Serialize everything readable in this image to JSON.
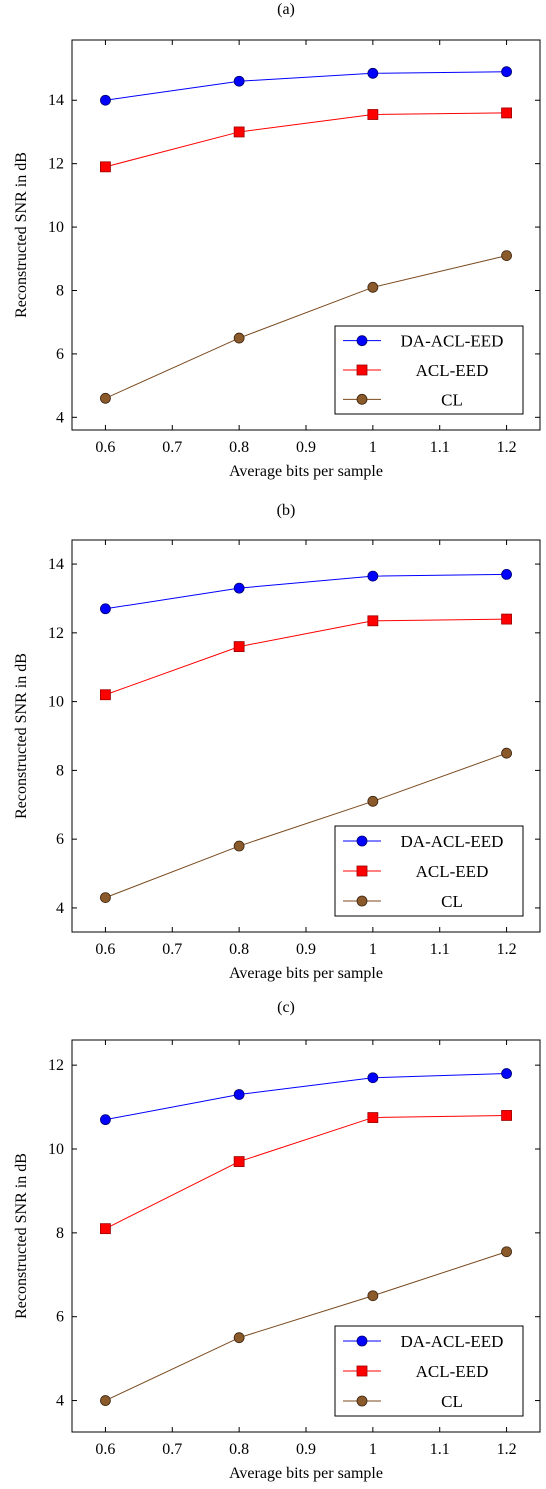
{
  "colors": {
    "DA-ACL-EED": "#0000ff",
    "ACL-EED": "#ff0000",
    "ACL-EED-marker-edge": "#990000",
    "CL": "#7a4a1f",
    "CL-marker": "#8b5a2b",
    "axis": "#000000"
  },
  "chart_data": [
    {
      "type": "line",
      "panel_label": "(a)",
      "xlabel": "Average bits per sample",
      "ylabel": "Reconstructed SNR in dB",
      "x": [
        0.6,
        0.8,
        1.0,
        1.2
      ],
      "xlim": [
        0.55,
        1.25
      ],
      "ylim": [
        3.6,
        15.9
      ],
      "xticks": [
        0.6,
        0.7,
        0.8,
        0.9,
        1.0,
        1.1,
        1.2
      ],
      "xtick_labels": [
        "0.6",
        "0.7",
        "0.8",
        "0.9",
        "1",
        "1.1",
        "1.2"
      ],
      "yticks": [
        4,
        6,
        8,
        10,
        12,
        14
      ],
      "legend_position": "bottom-right",
      "series": [
        {
          "name": "DA-ACL-EED",
          "marker": "circle",
          "values": [
            14.0,
            14.6,
            14.85,
            14.9
          ]
        },
        {
          "name": "ACL-EED",
          "marker": "square",
          "values": [
            11.9,
            13.0,
            13.55,
            13.6
          ]
        },
        {
          "name": "CL",
          "marker": "circle",
          "values": [
            4.6,
            6.5,
            8.1,
            9.1
          ]
        }
      ]
    },
    {
      "type": "line",
      "panel_label": "(b)",
      "xlabel": "Average bits per sample",
      "ylabel": "Reconstructed SNR in dB",
      "x": [
        0.6,
        0.8,
        1.0,
        1.2
      ],
      "xlim": [
        0.55,
        1.25
      ],
      "ylim": [
        3.3,
        14.7
      ],
      "xticks": [
        0.6,
        0.7,
        0.8,
        0.9,
        1.0,
        1.1,
        1.2
      ],
      "xtick_labels": [
        "0.6",
        "0.7",
        "0.8",
        "0.9",
        "1",
        "1.1",
        "1.2"
      ],
      "yticks": [
        4,
        6,
        8,
        10,
        12,
        14
      ],
      "legend_position": "bottom-right",
      "series": [
        {
          "name": "DA-ACL-EED",
          "marker": "circle",
          "values": [
            12.7,
            13.3,
            13.65,
            13.7
          ]
        },
        {
          "name": "ACL-EED",
          "marker": "square",
          "values": [
            10.2,
            11.6,
            12.35,
            12.4
          ]
        },
        {
          "name": "CL",
          "marker": "circle",
          "values": [
            4.3,
            5.8,
            7.1,
            8.5
          ]
        }
      ]
    },
    {
      "type": "line",
      "panel_label": "(c)",
      "xlabel": "Average bits per sample",
      "ylabel": "Reconstructed SNR in dB",
      "x": [
        0.6,
        0.8,
        1.0,
        1.2
      ],
      "xlim": [
        0.55,
        1.25
      ],
      "ylim": [
        3.25,
        12.6
      ],
      "xticks": [
        0.6,
        0.7,
        0.8,
        0.9,
        1.0,
        1.1,
        1.2
      ],
      "xtick_labels": [
        "0.6",
        "0.7",
        "0.8",
        "0.9",
        "1",
        "1.1",
        "1.2"
      ],
      "yticks": [
        4,
        6,
        8,
        10,
        12
      ],
      "legend_position": "bottom-right",
      "series": [
        {
          "name": "DA-ACL-EED",
          "marker": "circle",
          "values": [
            10.7,
            11.3,
            11.7,
            11.8
          ]
        },
        {
          "name": "ACL-EED",
          "marker": "square",
          "values": [
            8.1,
            9.7,
            10.75,
            10.8
          ]
        },
        {
          "name": "CL",
          "marker": "circle",
          "values": [
            4.0,
            5.5,
            6.5,
            7.55
          ]
        }
      ]
    }
  ]
}
